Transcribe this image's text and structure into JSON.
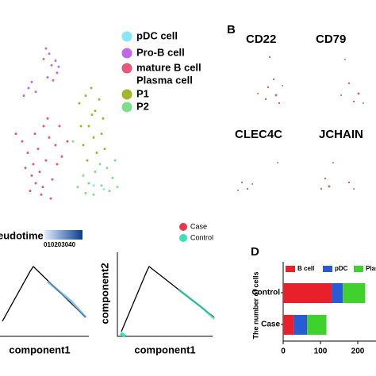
{
  "chart_data": [
    {
      "type": "scatter",
      "xlim": [
        0,
        160
      ],
      "ylim": [
        250,
        0
      ],
      "series": [
        {
          "name": "pDC cell",
          "color": "#87e6f7",
          "x": [
            118,
            131
          ],
          "y": [
            228,
            233
          ]
        },
        {
          "name": "Pro-B cell",
          "color": "#bf6ae6",
          "x": [
            58,
            62,
            65,
            70,
            72,
            60,
            67,
            40,
            36,
            45,
            30,
            74,
            55
          ],
          "y": [
            48,
            55,
            70,
            64,
            80,
            86,
            90,
            92,
            100,
            105,
            110,
            72,
            62
          ]
        },
        {
          "name": "mature B cell",
          "color": "#e5587a",
          "x": [
            20,
            28,
            35,
            42,
            50,
            55,
            62,
            70,
            78,
            45,
            38,
            52,
            66,
            72,
            58,
            48,
            40,
            32,
            60,
            75,
            85,
            44,
            54,
            64
          ],
          "y": [
            160,
            170,
            185,
            200,
            210,
            150,
            165,
            175,
            190,
            225,
            235,
            240,
            220,
            200,
            195,
            180,
            215,
            205,
            140,
            150,
            170,
            160,
            230,
            245
          ]
        },
        {
          "name": "P1",
          "color": "#a3b528",
          "x": [
            100,
            108,
            115,
            120,
            125,
            130,
            112,
            118,
            105,
            128,
            122,
            110,
            116,
            132,
            102
          ],
          "y": [
            120,
            110,
            100,
            130,
            115,
            140,
            150,
            165,
            175,
            160,
            185,
            195,
            135,
            180,
            150
          ]
        },
        {
          "name": "P2",
          "color": "#7ddf8a",
          "x": [
            98,
            105,
            112,
            120,
            128,
            135,
            142,
            148,
            108,
            118,
            126,
            138,
            92,
            145
          ],
          "y": [
            230,
            215,
            225,
            210,
            228,
            205,
            218,
            230,
            238,
            240,
            200,
            235,
            170,
            195
          ]
        }
      ],
      "note_label": "Plasma cell"
    },
    {
      "type": "barh",
      "panel": "D",
      "ylabel": "The number of cells",
      "categories": [
        "Control",
        "Case"
      ],
      "series": [
        {
          "name": "B cell",
          "color": "#e8202a",
          "values": [
            130,
            28
          ]
        },
        {
          "name": "pDC",
          "color": "#2a5bd7",
          "values": [
            30,
            36
          ]
        },
        {
          "name": "Plasma",
          "color": "#3fd12c",
          "values": [
            60,
            52
          ]
        }
      ],
      "xlim": [
        0,
        250
      ],
      "xticks": [
        0,
        100,
        200
      ]
    }
  ],
  "panel_b": {
    "label": "B",
    "genes": [
      "CD22",
      "CD79",
      "CLEC4C",
      "JCHAIN"
    ]
  },
  "panel_c": {
    "colorbar_title": "eudotime",
    "colorbar_label": "010203040",
    "xlabel_left": "component1",
    "xlabel_right": "component1",
    "ylabel_right": "component2",
    "legend": [
      "Case",
      "Control"
    ]
  }
}
